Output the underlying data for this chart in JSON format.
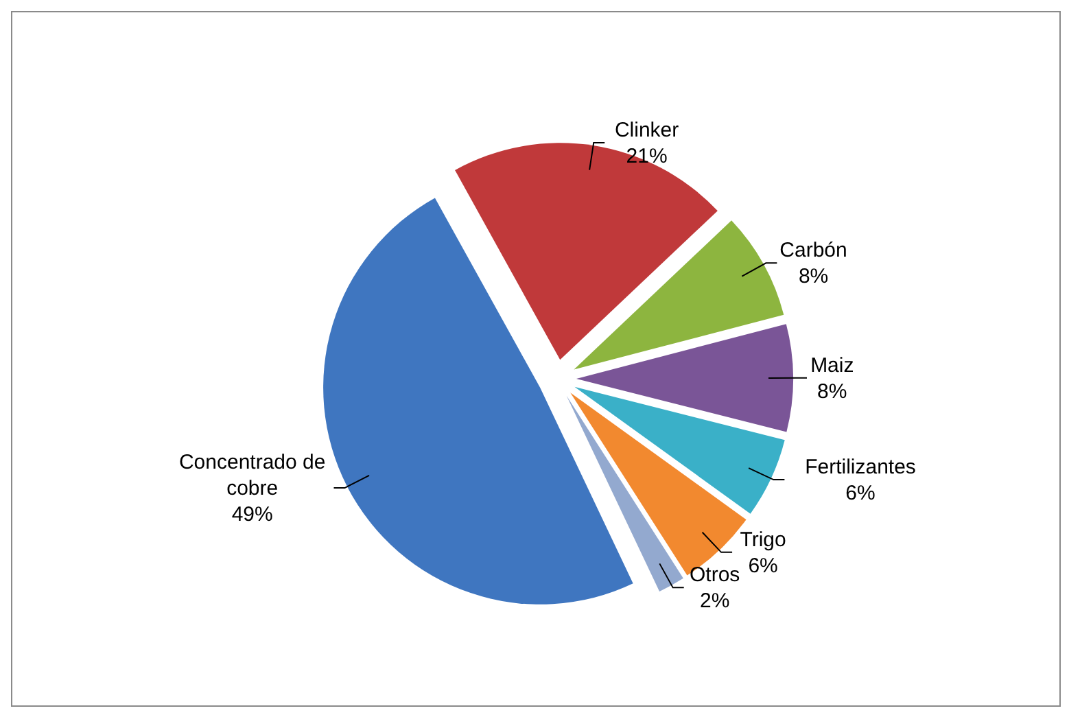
{
  "chart_data": {
    "type": "pie",
    "categories": [
      "Clinker",
      "Carbón",
      "Maiz",
      "Fertilizantes",
      "Trigo",
      "Otros",
      "Concentrado de cobre"
    ],
    "values": [
      21,
      8,
      8,
      6,
      6,
      2,
      49
    ],
    "value_labels": [
      "21%",
      "8%",
      "8%",
      "6%",
      "6%",
      "2%",
      "49%"
    ],
    "colors": [
      "#c0393a",
      "#8db53f",
      "#7a5597",
      "#3ab0c8",
      "#f2892f",
      "#93a9cf",
      "#3f76c0"
    ]
  }
}
